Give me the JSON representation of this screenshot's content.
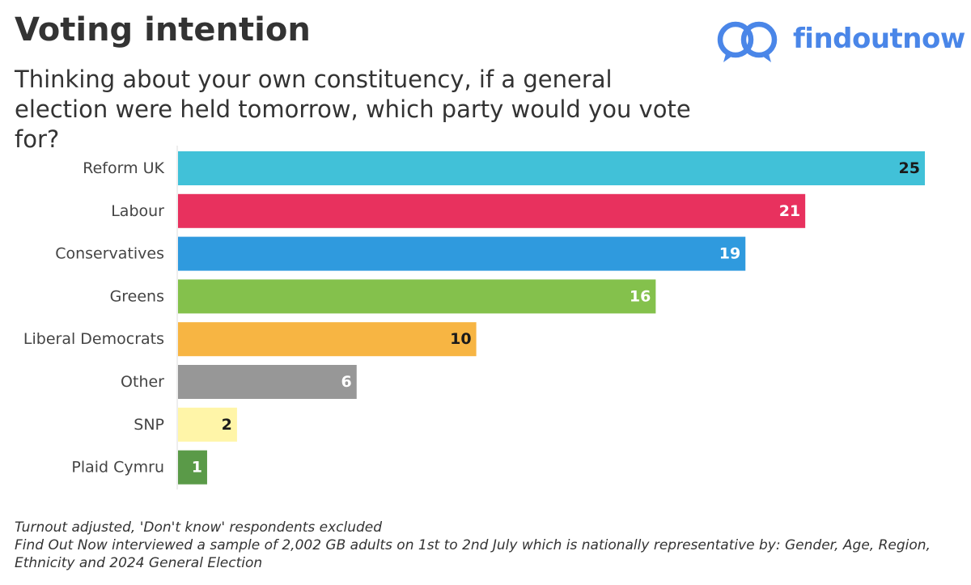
{
  "header": {
    "title": "Voting intention",
    "subtitle": "Thinking about your own constituency, if a general election were held tomorrow, which party would you vote for?"
  },
  "brand": {
    "name": "findoutnow",
    "icon": "two-speech-bubbles-logo-icon",
    "color": "#4a86e8"
  },
  "chart_data": {
    "type": "bar",
    "orientation": "horizontal",
    "categories": [
      "Reform UK",
      "Labour",
      "Conservatives",
      "Greens",
      "Liberal Democrats",
      "Other",
      "SNP",
      "Plaid Cymru"
    ],
    "values": [
      25,
      21,
      19,
      16,
      10,
      6,
      2,
      1
    ],
    "data_labels": [
      "25",
      "21",
      "19",
      "16",
      "10",
      "6",
      "2",
      "1"
    ],
    "colors": [
      "#41c1d8",
      "#e8315e",
      "#2f9ade",
      "#84c14c",
      "#f7b543",
      "#979797",
      "#fff5a8",
      "#5a9a48"
    ],
    "label_colors": [
      "#1a1a1a",
      "#ffffff",
      "#ffffff",
      "#ffffff",
      "#1a1a1a",
      "#ffffff",
      "#1a1a1a",
      "#ffffff"
    ],
    "xlim": [
      0,
      25
    ],
    "grid": false,
    "legend": "none"
  },
  "footer": {
    "note1": "Turnout adjusted, 'Don't know' respondents excluded",
    "note2": "Find Out Now interviewed a sample of 2,002 GB adults on 1st to 2nd July which is nationally representative by: Gender, Age, Region, Ethnicity and 2024 General Election"
  }
}
